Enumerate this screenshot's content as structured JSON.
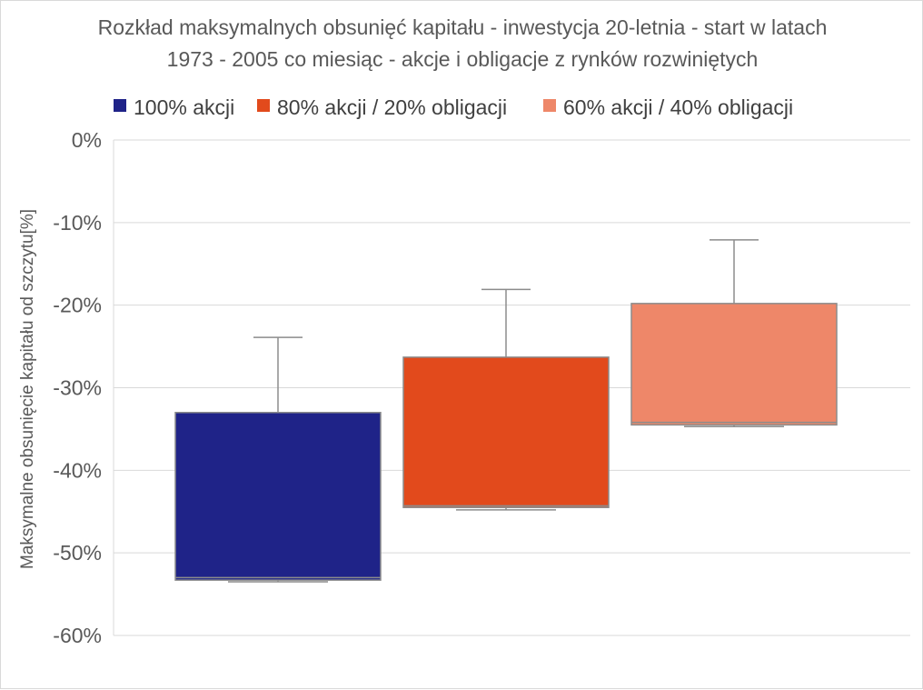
{
  "chart_data": {
    "type": "boxplot",
    "title_lines": [
      "Rozkład maksymalnych obsunięć kapitału - inwestycja 20-letnia - start w latach",
      "1973 - 2005 co miesiąc - akcje i obligacje z rynków rozwiniętych"
    ],
    "ylabel": "Maksymalne obsunięcie kapitału od szczytu[%]",
    "xlabel": "",
    "ylim": [
      -60,
      0
    ],
    "y_ticks": [
      0,
      -10,
      -20,
      -30,
      -40,
      -50,
      -60
    ],
    "y_tick_labels": [
      "0%",
      "-10%",
      "-20%",
      "-30%",
      "-40%",
      "-50%",
      "-60%"
    ],
    "grid": true,
    "legend_position": "top",
    "series": [
      {
        "name": "100% akcji",
        "color": "#1f2388",
        "whisker_high": -23.9,
        "q3": -33.0,
        "median": -53.0,
        "q1": -53.3,
        "whisker_low": -53.5
      },
      {
        "name": "80% akcji / 20% obligacji",
        "color": "#e24a1c",
        "whisker_high": -18.1,
        "q3": -26.3,
        "median": -44.3,
        "q1": -44.5,
        "whisker_low": -44.8
      },
      {
        "name": "60% akcji / 40% obligacji",
        "color": "#ee8769",
        "whisker_high": -12.1,
        "q3": -19.8,
        "median": -34.2,
        "q1": -34.5,
        "whisker_low": -34.7
      }
    ]
  }
}
